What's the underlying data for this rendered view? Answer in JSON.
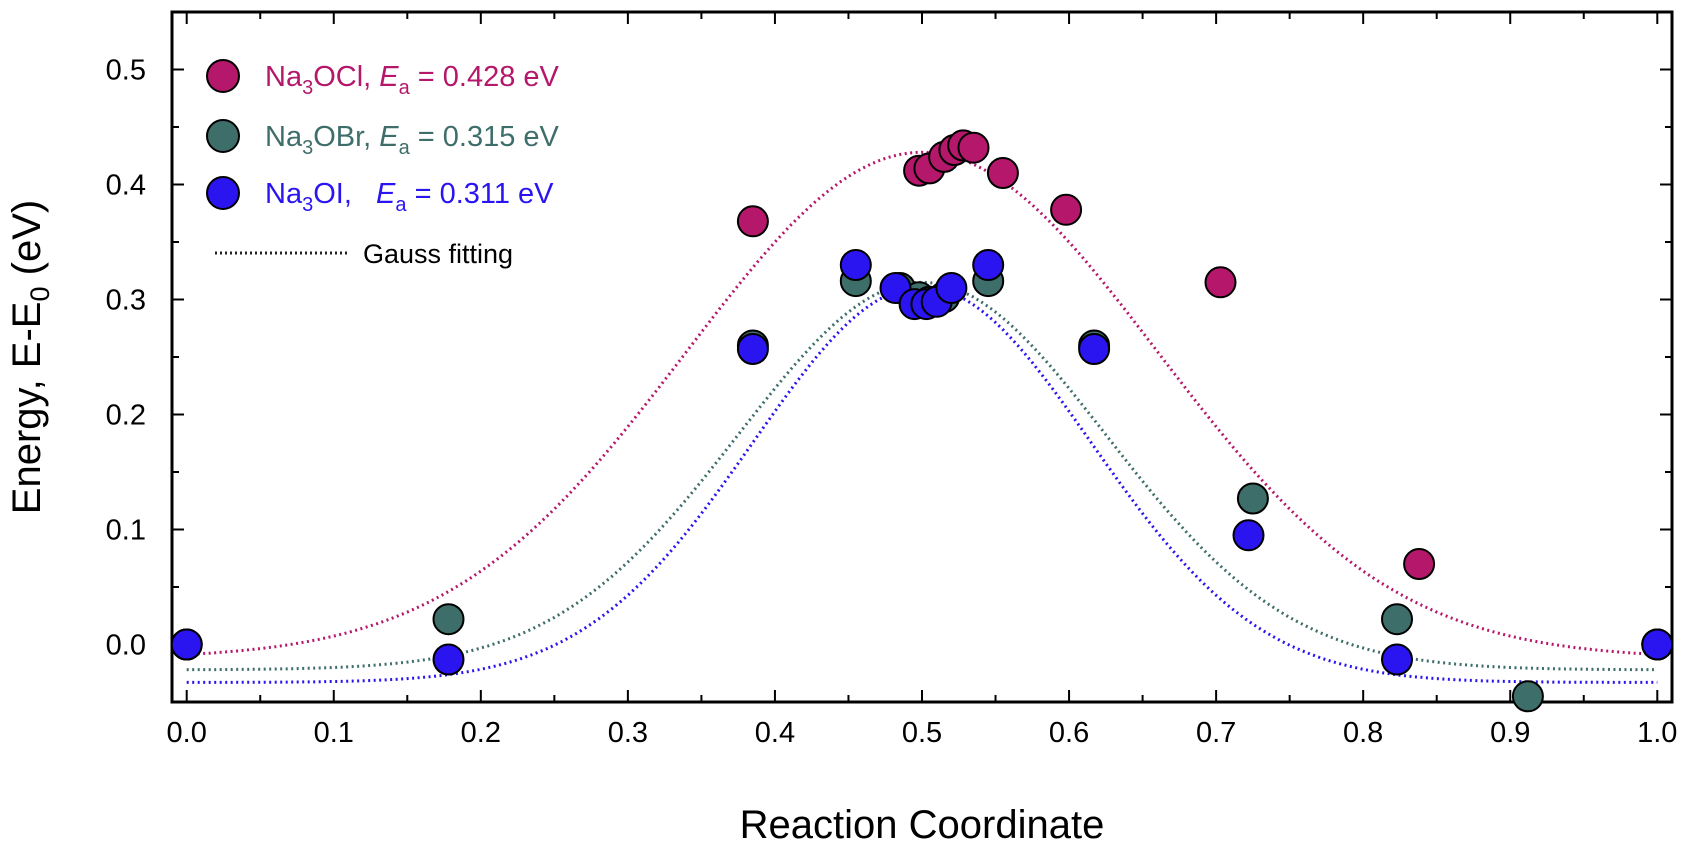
{
  "chart_data": {
    "type": "scatter",
    "xlabel": "Reaction Coordinate",
    "ylabel_main": "Energy, E-E",
    "ylabel_sub": "0",
    "ylabel_unit": " (eV)",
    "xlim": [
      -0.01,
      1.01
    ],
    "ylim": [
      -0.05,
      0.55
    ],
    "xticks": [
      0.0,
      0.1,
      0.2,
      0.3,
      0.4,
      0.5,
      0.6,
      0.7,
      0.8,
      0.9,
      1.0
    ],
    "xtick_labels": [
      "0.0",
      "0.1",
      "0.2",
      "0.3",
      "0.4",
      "0.5",
      "0.6",
      "0.7",
      "0.8",
      "0.9",
      "1.0"
    ],
    "yticks": [
      0.0,
      0.1,
      0.2,
      0.3,
      0.4,
      0.5
    ],
    "ytick_labels": [
      "0.0",
      "0.1",
      "0.2",
      "0.3",
      "0.4",
      "0.5"
    ],
    "grid": false,
    "legend_position": "top-left",
    "legend": [
      {
        "compound_pre": "Na",
        "compound_sub": "3",
        "compound_post": "OCl, ",
        "ea_sym": "E",
        "ea_sub": "a",
        "ea_value": " = 0.428 eV"
      },
      {
        "compound_pre": "Na",
        "compound_sub": "3",
        "compound_post": "OBr, ",
        "ea_sym": "E",
        "ea_sub": "a",
        "ea_value": " = 0.315 eV"
      },
      {
        "compound_pre": "Na",
        "compound_sub": "3",
        "compound_post": "OI,   ",
        "ea_sym": "E",
        "ea_sub": "a",
        "ea_value": " = 0.311 eV"
      }
    ],
    "fit_label": "Gauss fitting",
    "series": [
      {
        "key": "ocl",
        "color": "#B5176B",
        "points": [
          [
            0.0,
            0.0
          ],
          [
            0.385,
            0.368
          ],
          [
            0.498,
            0.412
          ],
          [
            0.505,
            0.414
          ],
          [
            0.515,
            0.424
          ],
          [
            0.522,
            0.43
          ],
          [
            0.528,
            0.434
          ],
          [
            0.535,
            0.432
          ],
          [
            0.555,
            0.41
          ],
          [
            0.598,
            0.378
          ],
          [
            0.703,
            0.315
          ],
          [
            0.838,
            0.07
          ],
          [
            1.0,
            0.0
          ]
        ],
        "fit": {
          "y0": -0.012,
          "A": 0.44,
          "xc": 0.5,
          "w": 0.32
        }
      },
      {
        "key": "obr",
        "color": "#3E6E6A",
        "points": [
          [
            0.0,
            0.0
          ],
          [
            0.178,
            0.022
          ],
          [
            0.385,
            0.26
          ],
          [
            0.455,
            0.316
          ],
          [
            0.485,
            0.31
          ],
          [
            0.498,
            0.302
          ],
          [
            0.505,
            0.298
          ],
          [
            0.515,
            0.302
          ],
          [
            0.545,
            0.316
          ],
          [
            0.617,
            0.26
          ],
          [
            0.725,
            0.127
          ],
          [
            0.823,
            0.022
          ],
          [
            0.912,
            -0.045
          ],
          [
            1.0,
            0.0
          ]
        ],
        "fit": {
          "y0": -0.022,
          "A": 0.337,
          "xc": 0.5,
          "w": 0.25
        }
      },
      {
        "key": "oi",
        "color": "#2A14F0",
        "points": [
          [
            0.0,
            0.0
          ],
          [
            0.178,
            -0.013
          ],
          [
            0.385,
            0.257
          ],
          [
            0.455,
            0.33
          ],
          [
            0.482,
            0.31
          ],
          [
            0.495,
            0.296
          ],
          [
            0.503,
            0.296
          ],
          [
            0.51,
            0.298
          ],
          [
            0.52,
            0.31
          ],
          [
            0.545,
            0.33
          ],
          [
            0.617,
            0.257
          ],
          [
            0.722,
            0.095
          ],
          [
            0.823,
            -0.013
          ],
          [
            1.0,
            0.0
          ]
        ],
        "fit": {
          "y0": -0.033,
          "A": 0.344,
          "xc": 0.5,
          "w": 0.23
        }
      }
    ]
  }
}
